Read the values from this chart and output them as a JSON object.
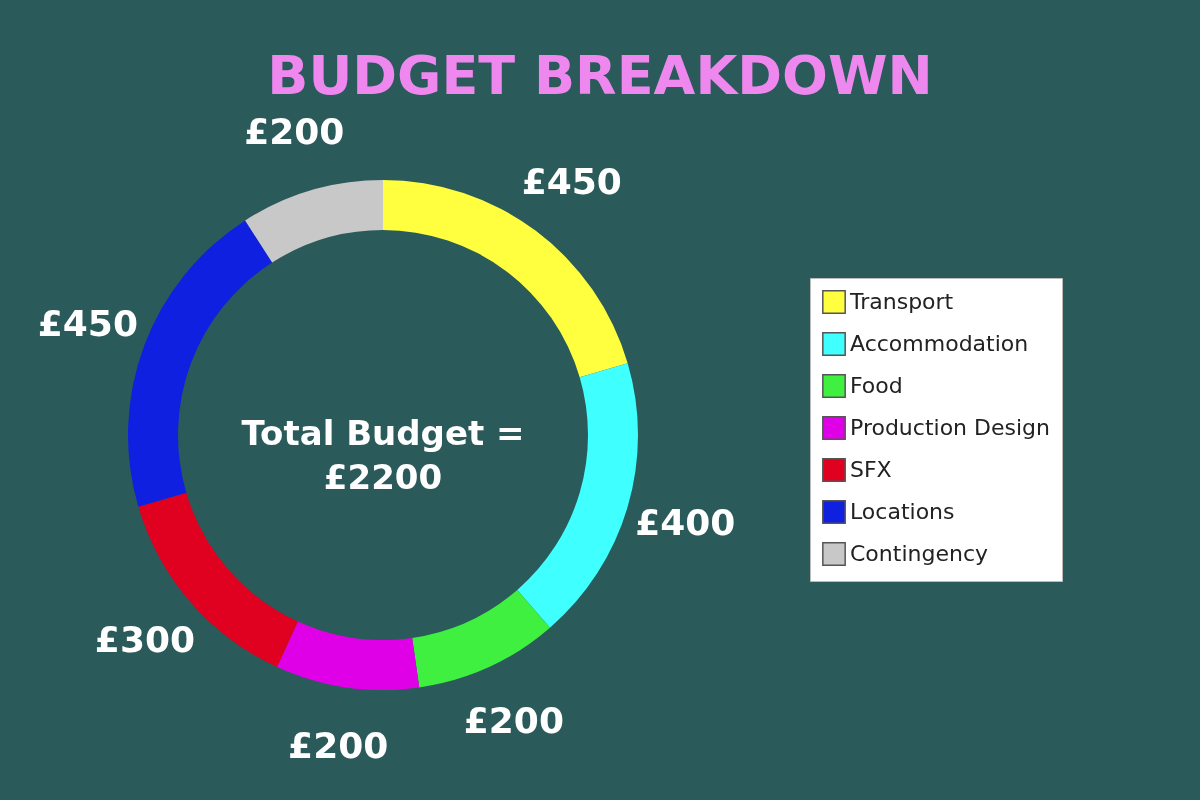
{
  "chart_data": {
    "type": "donut",
    "title": "BUDGET BREAKDOWN",
    "categories": [
      "Transport",
      "Accommodation",
      "Food",
      "Production Design",
      "SFX",
      "Locations",
      "Contingency"
    ],
    "values": [
      450,
      400,
      200,
      200,
      300,
      450,
      200
    ],
    "colors": [
      "#ffff40",
      "#40ffff",
      "#40f040",
      "#e000e8",
      "#e00020",
      "#1020e0",
      "#c8c8c8"
    ],
    "value_labels": [
      "£450",
      "£400",
      "£200",
      "£200",
      "£300",
      "£450",
      "£200"
    ],
    "annotations": [
      "Total Budget = £2200"
    ],
    "legend": "right"
  }
}
